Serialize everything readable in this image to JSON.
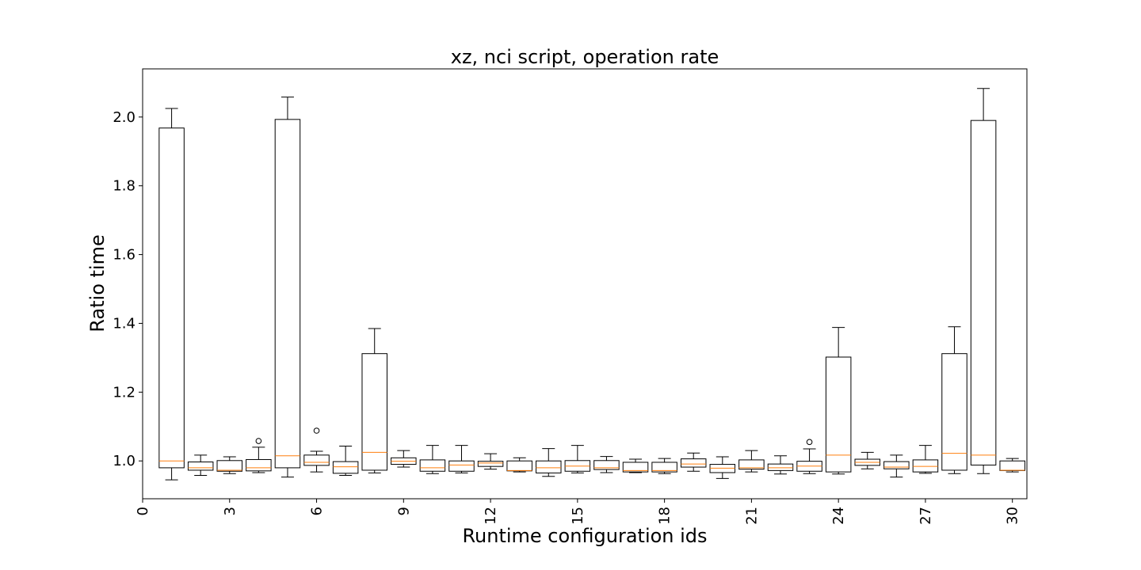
{
  "chart_data": {
    "type": "boxplot",
    "title": "xz, nci script, operation rate",
    "xlabel": "Runtime configuration ids",
    "ylabel": "Ratio time",
    "xlim": [
      0,
      30.5
    ],
    "ylim": [
      0.89,
      2.14
    ],
    "xticks": [
      "0",
      "3",
      "6",
      "9",
      "12",
      "15",
      "18",
      "21",
      "24",
      "27",
      "30"
    ],
    "yticks": [
      "1.0",
      "1.2",
      "1.4",
      "1.6",
      "1.8",
      "2.0"
    ],
    "grid": false,
    "colors": {
      "box": "#000000",
      "median": "#ff7f0e"
    },
    "series": [
      {
        "x": 1,
        "whislo": 0.945,
        "q1": 0.98,
        "med": 1.0,
        "q3": 1.968,
        "whishi": 2.025,
        "fliers": []
      },
      {
        "x": 2,
        "whislo": 0.958,
        "q1": 0.973,
        "med": 0.98,
        "q3": 0.997,
        "whishi": 1.017,
        "fliers": []
      },
      {
        "x": 3,
        "whislo": 0.963,
        "q1": 0.97,
        "med": 0.973,
        "q3": 1.001,
        "whishi": 1.012,
        "fliers": []
      },
      {
        "x": 4,
        "whislo": 0.966,
        "q1": 0.971,
        "med": 0.98,
        "q3": 1.004,
        "whishi": 1.04,
        "fliers": [
          1.058
        ]
      },
      {
        "x": 5,
        "whislo": 0.953,
        "q1": 0.98,
        "med": 1.015,
        "q3": 1.993,
        "whishi": 2.058,
        "fliers": []
      },
      {
        "x": 6,
        "whislo": 0.968,
        "q1": 0.987,
        "med": 0.996,
        "q3": 1.017,
        "whishi": 1.028,
        "fliers": [
          1.088
        ]
      },
      {
        "x": 7,
        "whislo": 0.958,
        "q1": 0.964,
        "med": 0.983,
        "q3": 0.998,
        "whishi": 1.043,
        "fliers": []
      },
      {
        "x": 8,
        "whislo": 0.965,
        "q1": 0.973,
        "med": 1.025,
        "q3": 1.312,
        "whishi": 1.385,
        "fliers": []
      },
      {
        "x": 9,
        "whislo": 0.982,
        "q1": 0.99,
        "med": 0.999,
        "q3": 1.009,
        "whishi": 1.03,
        "fliers": []
      },
      {
        "x": 10,
        "whislo": 0.963,
        "q1": 0.97,
        "med": 0.98,
        "q3": 1.003,
        "whishi": 1.045,
        "fliers": []
      },
      {
        "x": 11,
        "whislo": 0.965,
        "q1": 0.97,
        "med": 0.988,
        "q3": 1.0,
        "whishi": 1.045,
        "fliers": []
      },
      {
        "x": 12,
        "whislo": 0.976,
        "q1": 0.984,
        "med": 0.994,
        "q3": 0.999,
        "whishi": 1.021,
        "fliers": []
      },
      {
        "x": 13,
        "whislo": 0.968,
        "q1": 0.971,
        "med": 0.972,
        "q3": 1.0,
        "whishi": 1.009,
        "fliers": []
      },
      {
        "x": 14,
        "whislo": 0.955,
        "q1": 0.965,
        "med": 0.98,
        "q3": 1.0,
        "whishi": 1.036,
        "fliers": []
      },
      {
        "x": 15,
        "whislo": 0.965,
        "q1": 0.97,
        "med": 0.985,
        "q3": 1.001,
        "whishi": 1.045,
        "fliers": []
      },
      {
        "x": 16,
        "whislo": 0.966,
        "q1": 0.975,
        "med": 0.98,
        "q3": 1.001,
        "whishi": 1.013,
        "fliers": []
      },
      {
        "x": 17,
        "whislo": 0.966,
        "q1": 0.968,
        "med": 0.972,
        "q3": 0.996,
        "whishi": 1.005,
        "fliers": []
      },
      {
        "x": 18,
        "whislo": 0.963,
        "q1": 0.968,
        "med": 0.972,
        "q3": 0.996,
        "whishi": 1.007,
        "fliers": []
      },
      {
        "x": 19,
        "whislo": 0.97,
        "q1": 0.982,
        "med": 0.991,
        "q3": 1.006,
        "whishi": 1.023,
        "fliers": []
      },
      {
        "x": 20,
        "whislo": 0.949,
        "q1": 0.966,
        "med": 0.979,
        "q3": 0.99,
        "whishi": 1.012,
        "fliers": []
      },
      {
        "x": 21,
        "whislo": 0.968,
        "q1": 0.976,
        "med": 0.98,
        "q3": 1.003,
        "whishi": 1.03,
        "fliers": []
      },
      {
        "x": 22,
        "whislo": 0.962,
        "q1": 0.972,
        "med": 0.98,
        "q3": 0.991,
        "whishi": 1.015,
        "fliers": []
      },
      {
        "x": 23,
        "whislo": 0.963,
        "q1": 0.97,
        "med": 0.985,
        "q3": 0.999,
        "whishi": 1.035,
        "fliers": [
          1.055
        ]
      },
      {
        "x": 24,
        "whislo": 0.962,
        "q1": 0.968,
        "med": 1.017,
        "q3": 1.302,
        "whishi": 1.388,
        "fliers": []
      },
      {
        "x": 25,
        "whislo": 0.977,
        "q1": 0.987,
        "med": 0.996,
        "q3": 1.005,
        "whishi": 1.025,
        "fliers": []
      },
      {
        "x": 26,
        "whislo": 0.953,
        "q1": 0.977,
        "med": 0.982,
        "q3": 0.998,
        "whishi": 1.017,
        "fliers": []
      },
      {
        "x": 27,
        "whislo": 0.964,
        "q1": 0.968,
        "med": 0.984,
        "q3": 1.003,
        "whishi": 1.045,
        "fliers": []
      },
      {
        "x": 28,
        "whislo": 0.963,
        "q1": 0.973,
        "med": 1.022,
        "q3": 1.312,
        "whishi": 1.39,
        "fliers": []
      },
      {
        "x": 29,
        "whislo": 0.963,
        "q1": 0.988,
        "med": 1.017,
        "q3": 1.99,
        "whishi": 2.083,
        "fliers": []
      },
      {
        "x": 30,
        "whislo": 0.968,
        "q1": 0.972,
        "med": 0.973,
        "q3": 1.0,
        "whishi": 1.007,
        "fliers": []
      }
    ]
  }
}
